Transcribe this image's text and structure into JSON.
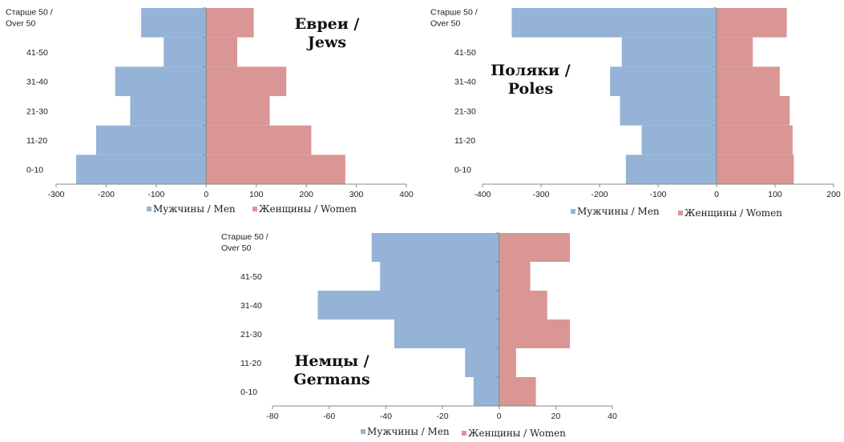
{
  "chart_data": [
    {
      "type": "bar",
      "orientation": "horizontal",
      "layout": "population-pyramid",
      "title": [
        "Евреи /",
        "Jews"
      ],
      "categories": [
        "0-10",
        "11-20",
        "21-30",
        "31-40",
        "41-50",
        [
          "Старше 50 /",
          "Over 50"
        ]
      ],
      "series": [
        {
          "name": "Мужчины / Men",
          "values": [
            -260,
            -220,
            -152,
            -182,
            -85,
            -130
          ]
        },
        {
          "name": "Женщины / Women",
          "values": [
            278,
            210,
            127,
            160,
            62,
            95
          ]
        }
      ],
      "xlim": [
        -300,
        400
      ],
      "xticks": [
        "-300",
        "-200",
        "-100",
        "0",
        "100",
        "200",
        "300",
        "400"
      ],
      "legend": "bottom",
      "grid": false,
      "colors": {
        "Мужчины / Men": "#95b3d7",
        "Женщины / Women": "#d99694"
      }
    },
    {
      "type": "bar",
      "orientation": "horizontal",
      "layout": "population-pyramid",
      "title": [
        "Поляки /",
        "Poles"
      ],
      "categories": [
        "0-10",
        "11-20",
        "21-30",
        "31-40",
        "41-50",
        [
          "Старше 50 /",
          "Over 50"
        ]
      ],
      "series": [
        {
          "name": "Мужчины / Men",
          "values": [
            -155,
            -128,
            -165,
            -182,
            -162,
            -350
          ]
        },
        {
          "name": "Женщины / Women",
          "values": [
            132,
            130,
            125,
            108,
            62,
            120
          ]
        }
      ],
      "xlim": [
        -400,
        200
      ],
      "xticks": [
        "-400",
        "-300",
        "-200",
        "-100",
        "0",
        "100",
        "200"
      ],
      "legend": "bottom",
      "grid": false,
      "colors": {
        "Мужчины / Men": "#95b3d7",
        "Женщины / Women": "#d99694"
      }
    },
    {
      "type": "bar",
      "orientation": "horizontal",
      "layout": "population-pyramid",
      "title": [
        "Немцы /",
        "Germans"
      ],
      "categories": [
        "0-10",
        "11-20",
        "21-30",
        "31-40",
        "41-50",
        [
          "Старше 50 /",
          "Over 50"
        ]
      ],
      "series": [
        {
          "name": "Мужчины / Men",
          "values": [
            -9,
            -12,
            -37,
            -64,
            -42,
            -45
          ]
        },
        {
          "name": "Женщины / Women",
          "values": [
            13,
            6,
            25,
            17,
            11,
            25
          ]
        }
      ],
      "xlim": [
        -80,
        40
      ],
      "xticks": [
        "-80",
        "-60",
        "-40",
        "-20",
        "0",
        "20",
        "40"
      ],
      "legend": "bottom",
      "grid": false,
      "colors": {
        "Мужчины / Men": "#95b3d7",
        "Женщины / Women": "#d99694"
      }
    }
  ]
}
